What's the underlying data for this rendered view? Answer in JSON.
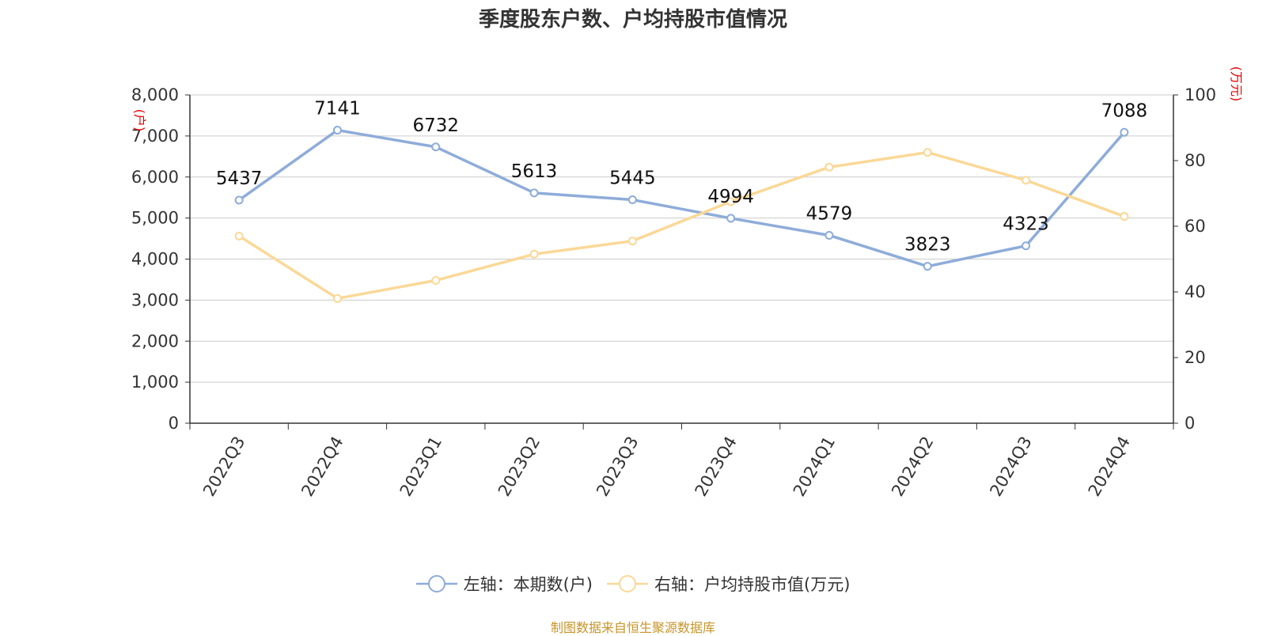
{
  "title": "季度股东户数、户均持股市值情况",
  "source": "制图数据来自恒生聚源数据库",
  "colors": {
    "left": "#8eacd9",
    "right": "#fbd897"
  },
  "legend": {
    "left": "左轴：本期数(户)",
    "right": "右轴：户均持股市值(万元)"
  },
  "chart_data": {
    "type": "line",
    "categories": [
      "2022Q3",
      "2022Q4",
      "2023Q1",
      "2023Q2",
      "2023Q3",
      "2023Q4",
      "2024Q1",
      "2024Q2",
      "2024Q3",
      "2024Q4"
    ],
    "left_axis": {
      "unit": "(户)",
      "ylim": [
        0,
        8000
      ],
      "ticks": [
        "0",
        "1,000",
        "2,000",
        "3,000",
        "4,000",
        "5,000",
        "6,000",
        "7,000",
        "8,000"
      ]
    },
    "right_axis": {
      "unit": "(万元)",
      "ylim": [
        0,
        100
      ],
      "ticks": [
        "0",
        "20",
        "40",
        "60",
        "80",
        "100"
      ]
    },
    "grid": true,
    "legend_position": "bottom",
    "series": [
      {
        "name": "左轴：本期数(户)",
        "axis": "left",
        "values": [
          5437,
          7141,
          6732,
          5613,
          5445,
          4994,
          4579,
          3823,
          4323,
          7088
        ],
        "labels": [
          "5437",
          "7141",
          "6732",
          "5613",
          "5445",
          "4994",
          "4579",
          "3823",
          "4323",
          "7088"
        ]
      },
      {
        "name": "右轴：户均持股市值(万元)",
        "axis": "right",
        "values": [
          57,
          38,
          43.5,
          51.5,
          55.5,
          67.5,
          78,
          82.5,
          74,
          63
        ]
      }
    ]
  }
}
